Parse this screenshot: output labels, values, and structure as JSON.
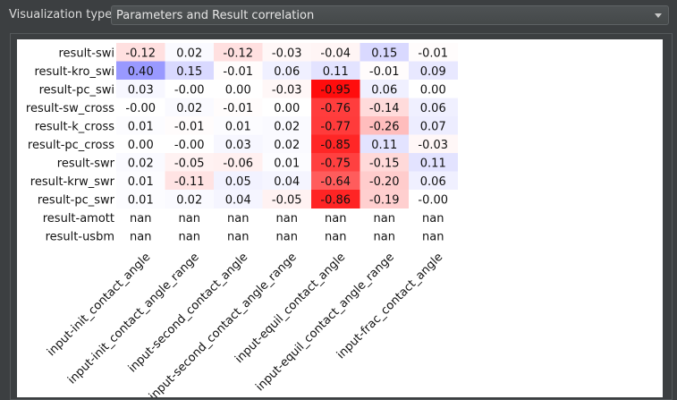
{
  "header": {
    "label": "Visualization type:",
    "selected": "Parameters and Result correlation"
  },
  "chart_data": {
    "type": "heatmap",
    "title": "Parameters and Result correlation",
    "rows": [
      "result-swi",
      "result-kro_swi",
      "result-pc_swi",
      "result-sw_cross",
      "result-k_cross",
      "result-pc_cross",
      "result-swr",
      "result-krw_swr",
      "result-pc_swr",
      "result-amott",
      "result-usbm"
    ],
    "columns": [
      "input-init_contact_angle",
      "input-init_contact_angle_range",
      "input-second_contact_angle",
      "input-second_contact_angle_range",
      "input-equil_contact_angle",
      "input-equil_contact_angle_range",
      "input-frac_contact_angle"
    ],
    "labels": [
      [
        "-0.12",
        "0.02",
        "-0.12",
        "-0.03",
        "-0.04",
        "0.15",
        "-0.01"
      ],
      [
        "0.40",
        "0.15",
        "-0.01",
        "0.06",
        "0.11",
        "-0.01",
        "0.09"
      ],
      [
        "0.03",
        "-0.00",
        "0.00",
        "-0.03",
        "-0.95",
        "0.06",
        "0.00"
      ],
      [
        "-0.00",
        "0.02",
        "-0.01",
        "0.00",
        "-0.76",
        "-0.14",
        "0.06"
      ],
      [
        "0.01",
        "-0.01",
        "0.01",
        "0.02",
        "-0.77",
        "-0.26",
        "0.07"
      ],
      [
        "0.00",
        "-0.00",
        "0.03",
        "0.02",
        "-0.85",
        "0.11",
        "-0.03"
      ],
      [
        "0.02",
        "-0.05",
        "-0.06",
        "0.01",
        "-0.75",
        "-0.15",
        "0.11"
      ],
      [
        "0.01",
        "-0.11",
        "0.05",
        "0.04",
        "-0.64",
        "-0.20",
        "0.06"
      ],
      [
        "0.01",
        "0.02",
        "0.04",
        "-0.05",
        "-0.86",
        "-0.19",
        "-0.00"
      ],
      [
        "nan",
        "nan",
        "nan",
        "nan",
        "nan",
        "nan",
        "nan"
      ],
      [
        "nan",
        "nan",
        "nan",
        "nan",
        "nan",
        "nan",
        "nan"
      ]
    ],
    "colormap": {
      "negative": "#ff0000",
      "positive": "#0000ff",
      "zero": "#ffffff"
    },
    "vmin": -1,
    "vmax": 1
  }
}
